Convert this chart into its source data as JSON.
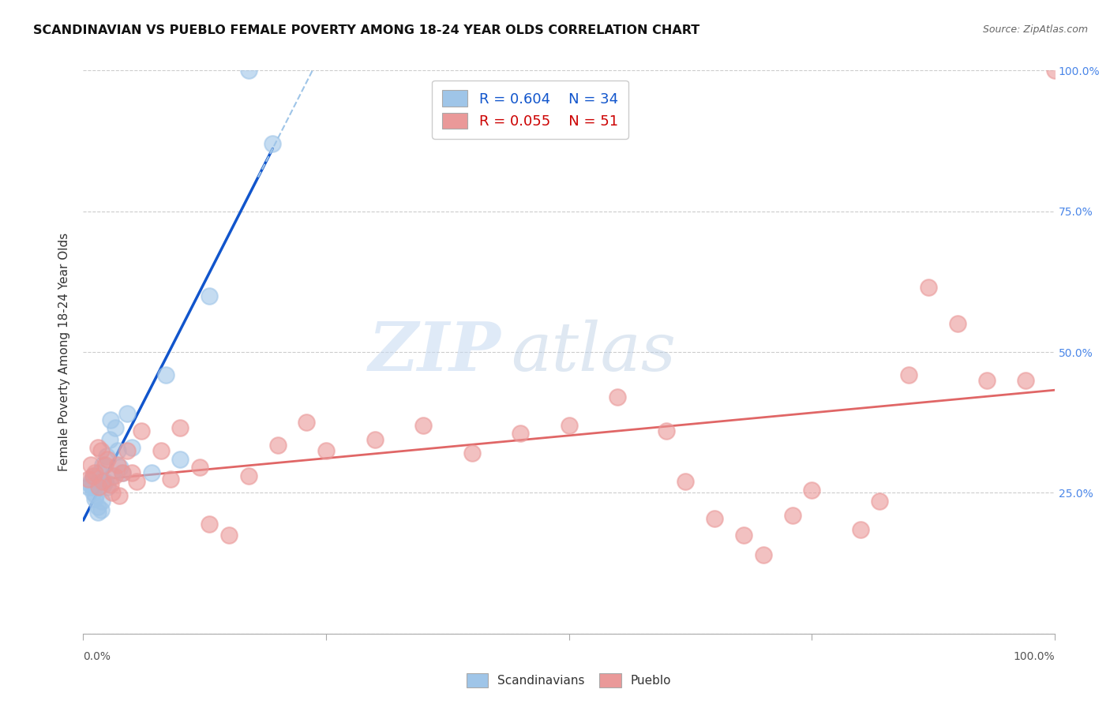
{
  "title": "SCANDINAVIAN VS PUEBLO FEMALE POVERTY AMONG 18-24 YEAR OLDS CORRELATION CHART",
  "source": "Source: ZipAtlas.com",
  "ylabel": "Female Poverty Among 18-24 Year Olds",
  "xlim": [
    0,
    1.0
  ],
  "ylim": [
    0,
    1.0
  ],
  "xticks": [
    0.0,
    0.25,
    0.5,
    0.75,
    1.0
  ],
  "yticks": [
    0.0,
    0.25,
    0.5,
    0.75,
    1.0
  ],
  "xticklabels_left": "0.0%",
  "xticklabels_right": "100.0%",
  "right_yticklabels": [
    "",
    "25.0%",
    "50.0%",
    "75.0%",
    "100.0%"
  ],
  "legend_r_blue": "R = 0.604",
  "legend_n_blue": "N = 34",
  "legend_r_pink": "R = 0.055",
  "legend_n_pink": "N = 51",
  "blue_scatter_color": "#9fc5e8",
  "pink_scatter_color": "#ea9999",
  "blue_line_color": "#1155cc",
  "blue_dash_color": "#9fc5e8",
  "pink_line_color": "#e06666",
  "watermark_zip": "ZIP",
  "watermark_atlas": "atlas",
  "legend_blue_text_color": "#1155cc",
  "legend_pink_text_color": "#cc0000",
  "right_tick_color": "#4a86e8",
  "scandinavian_x": [
    0.005,
    0.007,
    0.008,
    0.009,
    0.01,
    0.01,
    0.012,
    0.013,
    0.015,
    0.015,
    0.016,
    0.017,
    0.018,
    0.019,
    0.02,
    0.021,
    0.022,
    0.024,
    0.025,
    0.027,
    0.028,
    0.03,
    0.033,
    0.035,
    0.038,
    0.04,
    0.045,
    0.05,
    0.07,
    0.085,
    0.1,
    0.13,
    0.17,
    0.195
  ],
  "scandinavian_y": [
    0.26,
    0.265,
    0.27,
    0.26,
    0.25,
    0.28,
    0.24,
    0.245,
    0.215,
    0.225,
    0.27,
    0.285,
    0.22,
    0.235,
    0.3,
    0.265,
    0.27,
    0.315,
    0.26,
    0.345,
    0.38,
    0.28,
    0.365,
    0.325,
    0.295,
    0.285,
    0.39,
    0.33,
    0.285,
    0.46,
    0.31,
    0.6,
    1.0,
    0.87
  ],
  "pueblo_x": [
    0.005,
    0.008,
    0.01,
    0.012,
    0.015,
    0.016,
    0.018,
    0.02,
    0.022,
    0.025,
    0.028,
    0.03,
    0.032,
    0.035,
    0.037,
    0.04,
    0.045,
    0.05,
    0.055,
    0.06,
    0.08,
    0.09,
    0.1,
    0.12,
    0.13,
    0.15,
    0.17,
    0.2,
    0.23,
    0.25,
    0.3,
    0.35,
    0.4,
    0.45,
    0.5,
    0.55,
    0.6,
    0.62,
    0.65,
    0.68,
    0.7,
    0.73,
    0.75,
    0.8,
    0.82,
    0.85,
    0.87,
    0.9,
    0.93,
    0.97,
    1.0
  ],
  "pueblo_y": [
    0.275,
    0.3,
    0.28,
    0.285,
    0.33,
    0.26,
    0.325,
    0.27,
    0.3,
    0.31,
    0.265,
    0.25,
    0.28,
    0.3,
    0.245,
    0.285,
    0.325,
    0.285,
    0.27,
    0.36,
    0.325,
    0.275,
    0.365,
    0.295,
    0.195,
    0.175,
    0.28,
    0.335,
    0.375,
    0.325,
    0.345,
    0.37,
    0.32,
    0.355,
    0.37,
    0.42,
    0.36,
    0.27,
    0.205,
    0.175,
    0.14,
    0.21,
    0.255,
    0.185,
    0.235,
    0.46,
    0.615,
    0.55,
    0.45,
    0.45,
    1.0
  ]
}
